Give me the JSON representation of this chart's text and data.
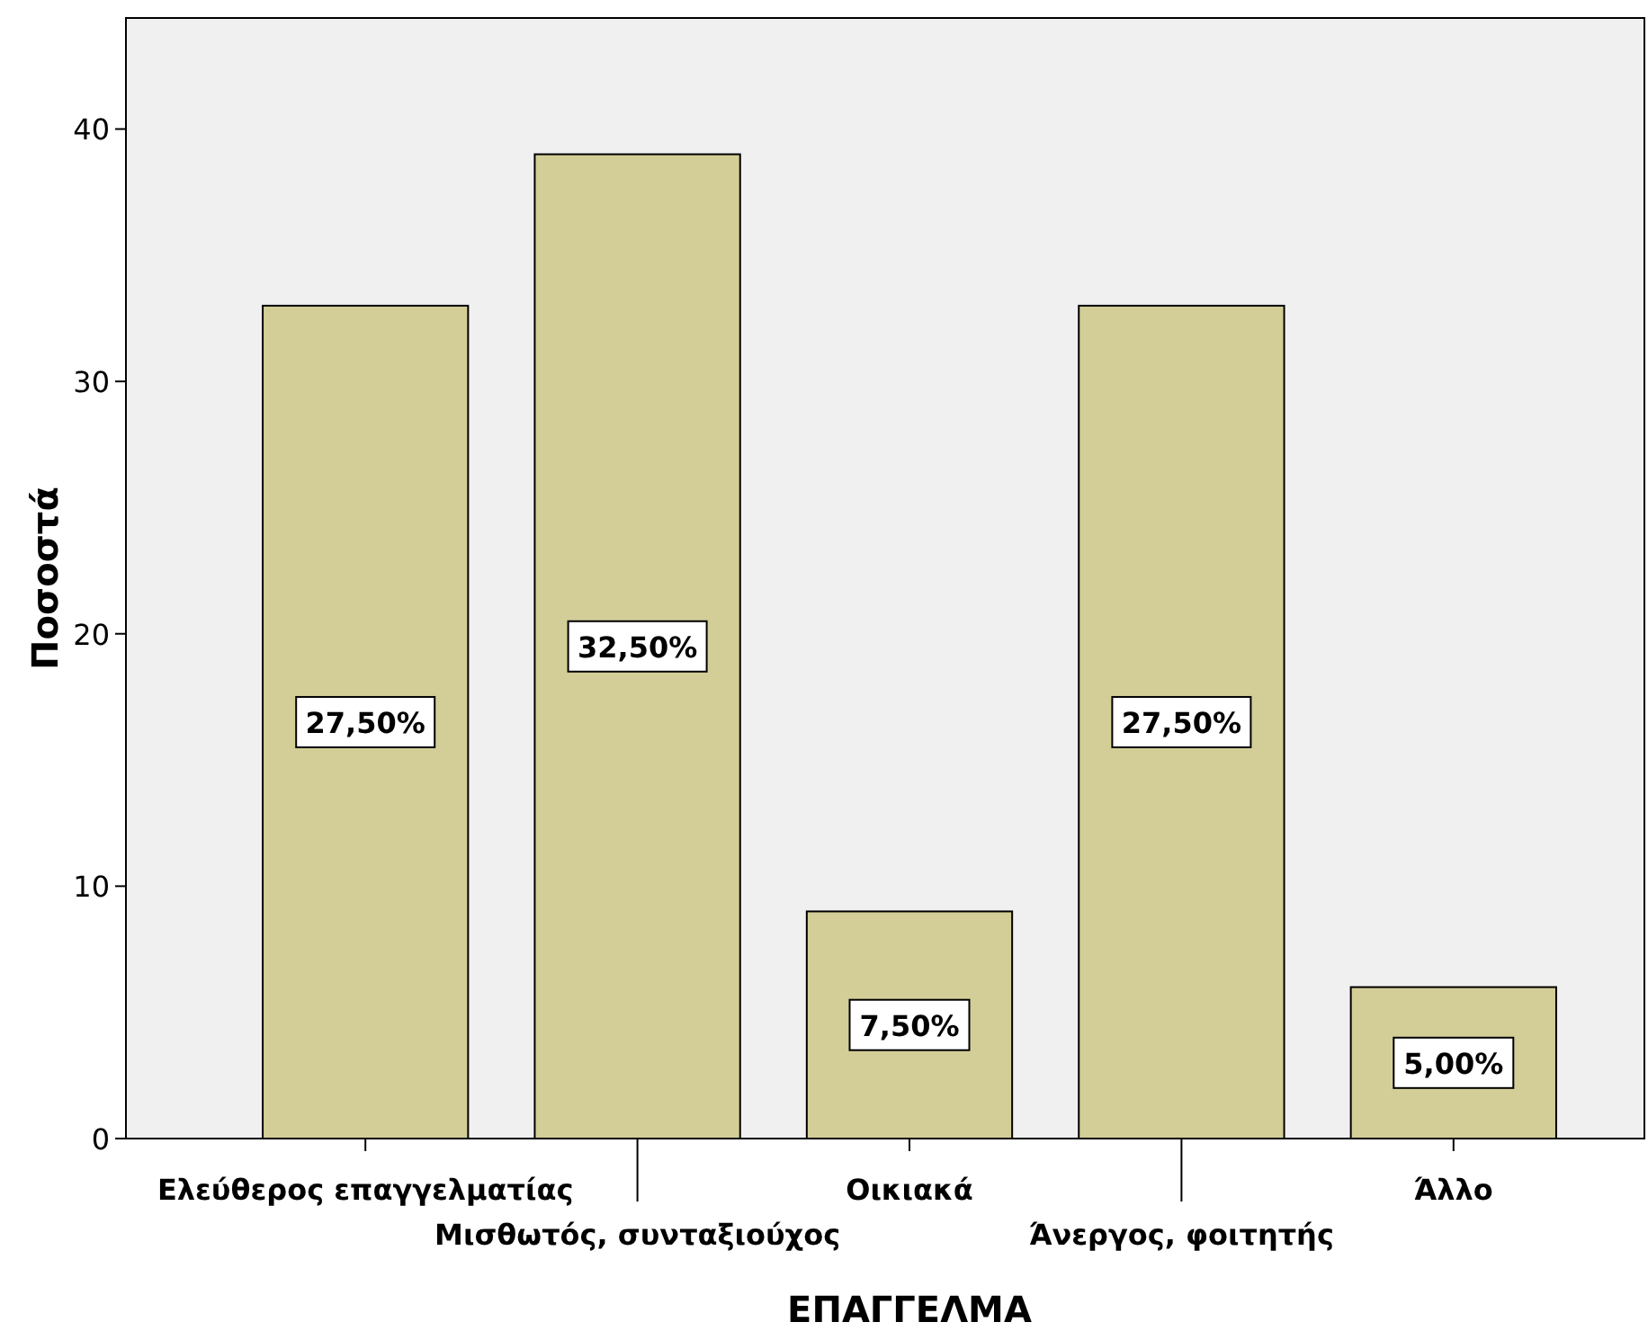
{
  "chart_data": {
    "type": "bar",
    "xlabel": "ΕΠΑΓΓΕΛΜΑ",
    "ylabel": "Ποσοστά",
    "categories": [
      "Ελεύθερος επαγγελματίας",
      "Μισθωτός, συνταξιούχος",
      "Οικιακά",
      "Άνεργος, φοιτητής",
      "Άλλο"
    ],
    "values": [
      33,
      39,
      9,
      33,
      6
    ],
    "annotations": [
      "27,50%",
      "32,50%",
      "7,50%",
      "27,50%",
      "5,00%"
    ],
    "color": "#d3ce97",
    "ylim": [
      0,
      44.4
    ],
    "yticks": [
      0,
      10,
      20,
      30,
      40
    ],
    "grid": false
  }
}
